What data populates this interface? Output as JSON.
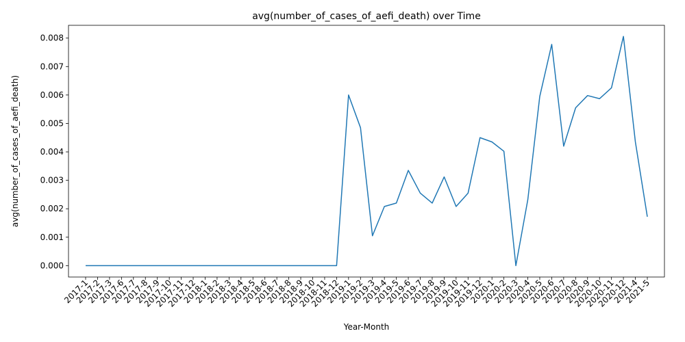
{
  "chart_data": {
    "type": "line",
    "title": "avg(number_of_cases_of_aefi_death) over Time",
    "xlabel": "Year-Month",
    "ylabel": "avg(number_of_cases_of_aefi_death)",
    "ylim": [
      -0.0004,
      0.00845
    ],
    "yticks": [
      "0.000",
      "0.001",
      "0.002",
      "0.003",
      "0.004",
      "0.005",
      "0.006",
      "0.007",
      "0.008"
    ],
    "grid": false,
    "line_color": "#1f77b4",
    "categories": [
      "2017-1",
      "2017-2",
      "2017-3",
      "2017-6",
      "2017-7",
      "2017-8",
      "2017-9",
      "2017-10",
      "2017-11",
      "2017-12",
      "2018-1",
      "2018-2",
      "2018-3",
      "2018-4",
      "2018-5",
      "2018-6",
      "2018-7",
      "2018-8",
      "2018-9",
      "2018-10",
      "2018-11",
      "2018-12",
      "2019-1",
      "2019-2",
      "2019-3",
      "2019-4",
      "2019-5",
      "2019-6",
      "2019-7",
      "2019-8",
      "2019-9",
      "2019-10",
      "2019-11",
      "2019-12",
      "2020-1",
      "2020-2",
      "2020-3",
      "2020-4",
      "2020-5",
      "2020-6",
      "2020-7",
      "2020-8",
      "2020-9",
      "2020-10",
      "2020-11",
      "2020-12",
      "2021-4",
      "2021-5"
    ],
    "values": [
      0,
      0,
      0,
      0,
      0,
      0,
      0,
      0,
      0,
      0,
      0,
      0,
      0,
      0,
      0,
      0,
      0,
      0,
      0,
      0,
      0,
      0,
      0.006,
      0.00485,
      0.00105,
      0.00208,
      0.0022,
      0.00335,
      0.00255,
      0.0022,
      0.00312,
      0.00208,
      0.00255,
      0.0045,
      0.00435,
      0.00402,
      0,
      0.00232,
      0.00595,
      0.00778,
      0.0042,
      0.00555,
      0.00598,
      0.00587,
      0.00625,
      0.00806,
      0.00435,
      0.00172
    ]
  }
}
